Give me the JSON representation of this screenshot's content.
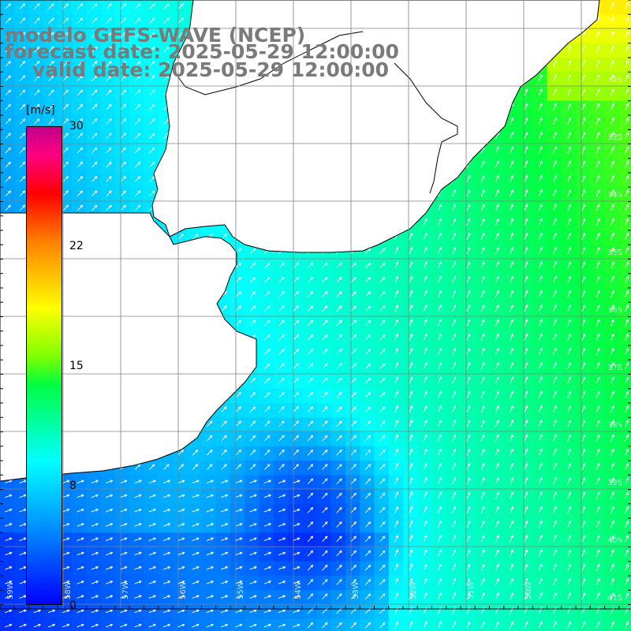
{
  "title": {
    "line1": "modelo GEFS-WAVE (NCEP)",
    "line2": "forecast date: 2025-05-29 12:00:00",
    "line3": "    valid date: 2025-05-29 12:00:00"
  },
  "colorbar": {
    "unit": "[m/s]",
    "ticks": [
      "30",
      "22",
      "15",
      "8",
      "0"
    ],
    "tick_values": [
      30,
      22,
      15,
      8,
      0
    ],
    "colors": [
      "#0000ff",
      "#00a0ff",
      "#00ffff",
      "#00ff40",
      "#80ff00",
      "#ffff00",
      "#ff8000",
      "#ff0000",
      "#c0008a"
    ]
  },
  "map": {
    "field": "wind speed",
    "unit": "m/s",
    "lat_labels": [
      "32S",
      "33S",
      "34S",
      "35S",
      "36S",
      "37S",
      "38S",
      "39S",
      "40S",
      "41S"
    ],
    "lon_labels": [
      "59W",
      "58W",
      "57W",
      "56W",
      "55W",
      "54W",
      "53W",
      "52W",
      "51W",
      "50W"
    ],
    "land_color": "#ffffff",
    "grid_color": "#808080"
  }
}
